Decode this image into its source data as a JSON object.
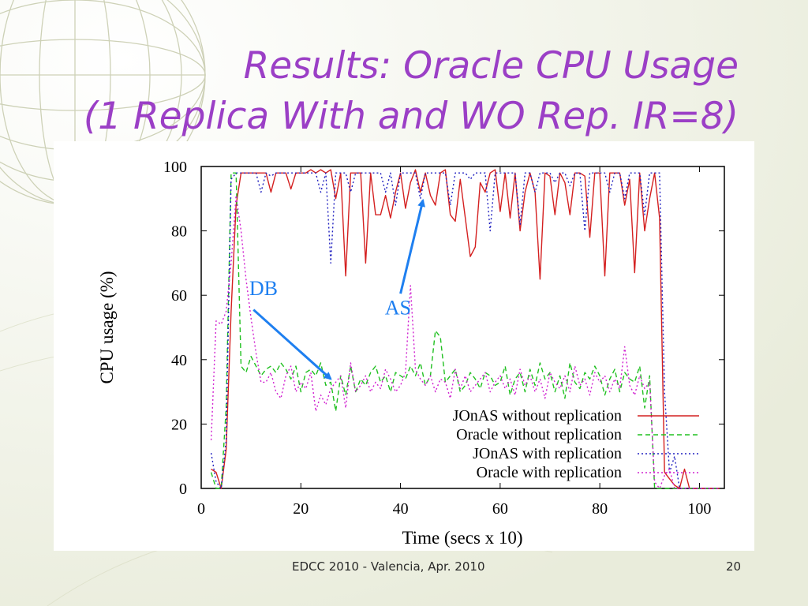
{
  "slide": {
    "title_line_1": "Results: Oracle CPU Usage",
    "title_line_2": "(1 Replica With and WO Rep. IR=8)",
    "footer": "EDCC 2010 - Valencia, Apr. 2010",
    "page_number": "20"
  },
  "colors": {
    "title": "#9b3fc6",
    "annotation": "#1e7ff0"
  },
  "chart_data": {
    "type": "line",
    "xlabel": "Time (secs x 10)",
    "ylabel": "CPU usage (%)",
    "xlim": [
      0,
      105
    ],
    "ylim": [
      0,
      100
    ],
    "xticks": [
      0,
      20,
      40,
      60,
      80,
      100
    ],
    "yticks": [
      0,
      20,
      40,
      60,
      80,
      100
    ],
    "grid": false,
    "legend_position": "bottom-right",
    "x": [
      2,
      3,
      4,
      5,
      6,
      7,
      8,
      9,
      10,
      11,
      12,
      13,
      14,
      15,
      16,
      17,
      18,
      19,
      20,
      21,
      22,
      23,
      24,
      25,
      26,
      27,
      28,
      29,
      30,
      31,
      32,
      33,
      34,
      35,
      36,
      37,
      38,
      39,
      40,
      41,
      42,
      43,
      44,
      45,
      46,
      47,
      48,
      49,
      50,
      51,
      52,
      53,
      54,
      55,
      56,
      57,
      58,
      59,
      60,
      61,
      62,
      63,
      64,
      65,
      66,
      67,
      68,
      69,
      70,
      71,
      72,
      73,
      74,
      75,
      76,
      77,
      78,
      79,
      80,
      81,
      82,
      83,
      84,
      85,
      86,
      87,
      88,
      89,
      90,
      91,
      92,
      93,
      94,
      95,
      96,
      97,
      98,
      99,
      100,
      101,
      102,
      103,
      104
    ],
    "series": [
      {
        "name": "JOnAS without replication",
        "color": "#d42020",
        "dash": "solid",
        "values": [
          6,
          5,
          0,
          12,
          55,
          88,
          98,
          98,
          98,
          98,
          98,
          98,
          92,
          98,
          98,
          98,
          93,
          98,
          98,
          98,
          99,
          98,
          99,
          98,
          99,
          90,
          98,
          66,
          98,
          98,
          98,
          70,
          98,
          85,
          85,
          91,
          84,
          92,
          98,
          87,
          95,
          99,
          92,
          98,
          91,
          88,
          98,
          99,
          85,
          83,
          96,
          84,
          72,
          75,
          95,
          92,
          98,
          99,
          86,
          98,
          84,
          98,
          80,
          92,
          98,
          92,
          65,
          98,
          97,
          85,
          98,
          95,
          85,
          98,
          98,
          97,
          78,
          98,
          98,
          66,
          98,
          98,
          98,
          88,
          96,
          67,
          98,
          80,
          90,
          98,
          84,
          5,
          3,
          1,
          0,
          6,
          0,
          0,
          0,
          0,
          0,
          0,
          0
        ]
      },
      {
        "name": "Oracle without replication",
        "color": "#20c020",
        "dash": "dash",
        "values": [
          5,
          0,
          0,
          25,
          98,
          98,
          38,
          36,
          41,
          38,
          35,
          37,
          38,
          36,
          39,
          37,
          34,
          38,
          30,
          36,
          37,
          35,
          39,
          32,
          33,
          24,
          35,
          29,
          38,
          30,
          34,
          32,
          36,
          38,
          33,
          35,
          30,
          36,
          35,
          34,
          38,
          35,
          39,
          32,
          35,
          49,
          47,
          33,
          35,
          37,
          30,
          32,
          36,
          34,
          31,
          36,
          35,
          32,
          33,
          38,
          29,
          34,
          36,
          30,
          37,
          32,
          39,
          34,
          36,
          30,
          35,
          28,
          39,
          33,
          31,
          36,
          34,
          38,
          35,
          29,
          34,
          37,
          30,
          36,
          34,
          33,
          38,
          25,
          35,
          0,
          0,
          0,
          0,
          0,
          0,
          0,
          0,
          0,
          0,
          0,
          0,
          0,
          0
        ]
      },
      {
        "name": "JOnAS with replication",
        "color": "#2020c0",
        "dash": "dot",
        "values": [
          11,
          2,
          0,
          15,
          96,
          98,
          98,
          98,
          98,
          98,
          92,
          98,
          97,
          98,
          98,
          98,
          98,
          98,
          98,
          98,
          98,
          98,
          92,
          98,
          70,
          98,
          98,
          98,
          92,
          98,
          98,
          98,
          98,
          98,
          98,
          92,
          98,
          88,
          98,
          98,
          98,
          98,
          90,
          98,
          98,
          98,
          98,
          98,
          88,
          98,
          98,
          98,
          96,
          98,
          98,
          98,
          80,
          98,
          98,
          98,
          98,
          98,
          82,
          98,
          98,
          92,
          98,
          98,
          98,
          95,
          98,
          98,
          94,
          98,
          98,
          80,
          98,
          98,
          98,
          98,
          92,
          98,
          98,
          90,
          98,
          98,
          98,
          85,
          98,
          98,
          98,
          30,
          5,
          10,
          0,
          0,
          0,
          0,
          0,
          0,
          0,
          0,
          0
        ]
      },
      {
        "name": "Oracle with replication",
        "color": "#d020d0",
        "dash": "dot",
        "values": [
          15,
          52,
          51,
          55,
          70,
          91,
          80,
          65,
          53,
          42,
          33,
          33,
          36,
          30,
          28,
          35,
          38,
          30,
          33,
          31,
          36,
          24,
          29,
          26,
          31,
          33,
          35,
          25,
          39,
          30,
          32,
          35,
          30,
          33,
          31,
          37,
          34,
          30,
          32,
          36,
          63,
          37,
          34,
          32,
          35,
          30,
          34,
          33,
          28,
          37,
          31,
          35,
          30,
          32,
          34,
          36,
          30,
          33,
          35,
          31,
          34,
          29,
          37,
          32,
          35,
          30,
          34,
          28,
          36,
          33,
          31,
          35,
          30,
          38,
          32,
          34,
          29,
          36,
          33,
          35,
          30,
          34,
          31,
          44,
          32,
          29,
          35,
          31,
          33,
          2,
          0,
          4,
          6,
          0,
          0,
          0,
          0,
          0,
          0,
          0,
          0,
          0,
          0
        ]
      }
    ],
    "annotations": [
      {
        "text": "DB",
        "x": 12.5,
        "y": 60,
        "arrow_from": [
          10.5,
          55.5
        ],
        "arrow_to": [
          26,
          34
        ]
      },
      {
        "text": "AS",
        "x": 39.5,
        "y": 54,
        "arrow_from": [
          40,
          60.5
        ],
        "arrow_to": [
          44.5,
          89.5
        ]
      }
    ]
  }
}
